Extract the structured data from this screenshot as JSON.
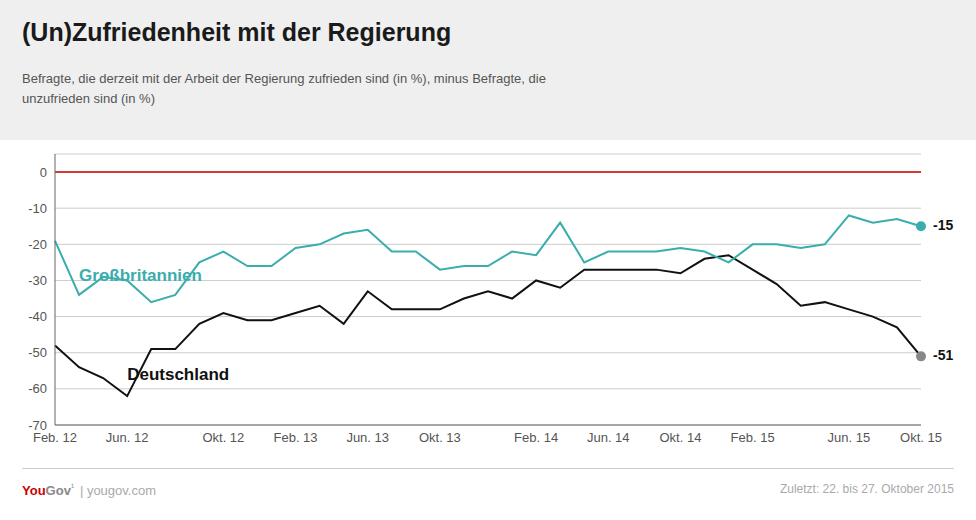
{
  "chart_data": {
    "type": "line",
    "title": "(Un)Zufriedenheit mit der Regierung",
    "subtitle": "Befragte, die derzeit mit der Arbeit der Regierung zufrieden sind (in %), minus Befragte, die\nunzufrieden sind (in %)",
    "categories": [
      "Feb. 12",
      null,
      null,
      "Jun. 12",
      null,
      null,
      null,
      "Okt. 12",
      null,
      null,
      "Feb. 13",
      null,
      null,
      "Jun. 13",
      null,
      null,
      "Okt. 13",
      null,
      null,
      null,
      "Feb. 14",
      null,
      null,
      "Jun. 14",
      null,
      null,
      "Okt. 14",
      null,
      null,
      "Feb. 15",
      null,
      null,
      null,
      "Jun. 15",
      null,
      null,
      "Okt. 15"
    ],
    "series": [
      {
        "name": "Deutschland",
        "color": "#111111",
        "end_label": "-51",
        "values": [
          -48,
          -54,
          -57,
          -62,
          -49,
          -49,
          -42,
          -39,
          -41,
          -41,
          -39,
          -37,
          -42,
          -33,
          -38,
          -38,
          -38,
          -35,
          -33,
          -35,
          -30,
          -32,
          -27,
          -27,
          -27,
          -27,
          -28,
          -24,
          -23,
          -27,
          -31,
          -37,
          -36,
          -38,
          -40,
          -43,
          -51
        ]
      },
      {
        "name": "Großbritannien",
        "color": "#3aadad",
        "end_label": "-15",
        "values": [
          -19,
          -34,
          -29,
          -30,
          -36,
          -34,
          -25,
          -22,
          -26,
          -26,
          -21,
          -20,
          -17,
          -16,
          -22,
          -22,
          -27,
          -26,
          -26,
          -22,
          -23,
          -14,
          -25,
          -22,
          -22,
          -22,
          -21,
          -22,
          -25,
          -20,
          -20,
          -21,
          -20,
          -12,
          -14,
          -13,
          -15
        ]
      }
    ],
    "ylim": [
      -70,
      5
    ],
    "yticks": [
      0,
      -10,
      -20,
      -30,
      -40,
      -50,
      -60,
      -70
    ],
    "grid": true,
    "reference_line": {
      "y": 0,
      "color": "#cc0000"
    },
    "footer_left": [
      "You",
      "Gov",
      "¹",
      "| yougov.com"
    ],
    "footer_right": "Zuletzt: 22. bis 27. Oktober 2015"
  }
}
